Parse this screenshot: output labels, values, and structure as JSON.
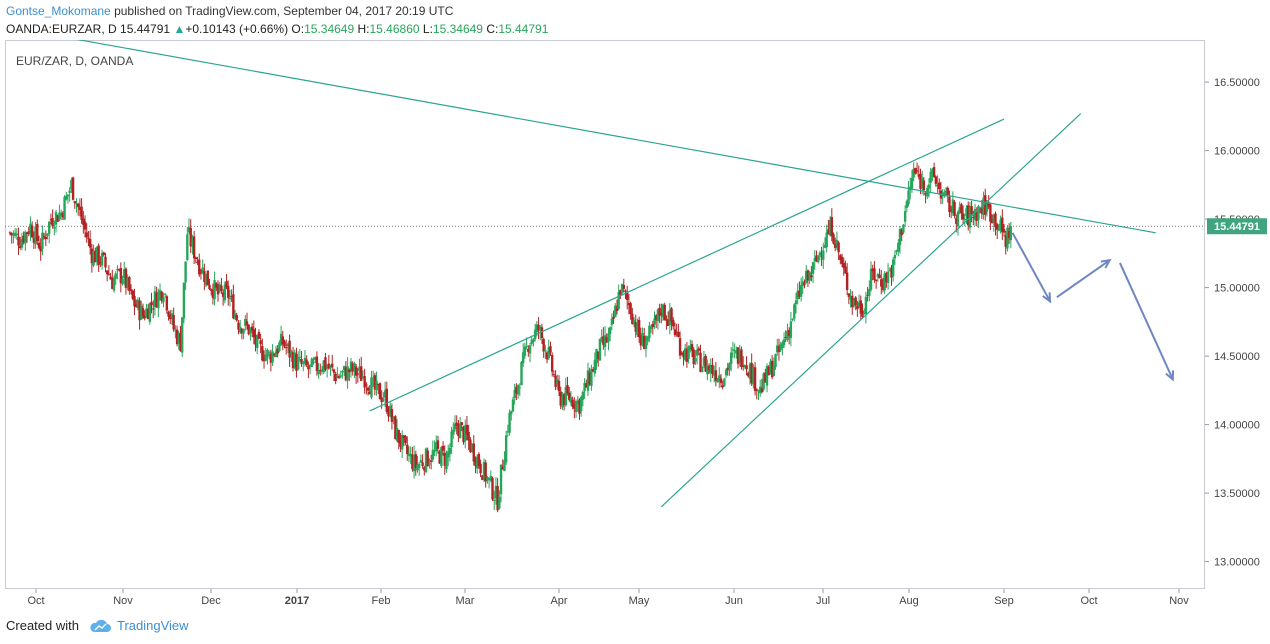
{
  "header": {
    "author": "Gontse_Mokomane",
    "published_text": "published on TradingView.com, September 04, 2017 20:19 UTC",
    "symbol_full": "OANDA:EURZAR, D",
    "last_price": "15.44791",
    "change_arrow": "▲",
    "change_text": "+0.10143 (+0.66%)",
    "open_label": "O:",
    "open_value": "15.34649",
    "high_label": "H:",
    "high_value": "15.46860",
    "low_label": "L:",
    "low_value": "15.34649",
    "close_label": "C:",
    "close_value": "15.44791"
  },
  "chart_label": "EUR/ZAR, D, OANDA",
  "footer": {
    "created_with": "Created with",
    "brand": "TradingView",
    "logo_icon": "tradingview-cloud-icon"
  },
  "colors": {
    "up": "#26a65b",
    "down": "#b22222",
    "trendline": "#2aa58f",
    "arrow": "#6f86c3",
    "price_badge": "#40a47f"
  },
  "chart_data": {
    "type": "candlestick",
    "symbol": "EUR/ZAR",
    "interval": "D",
    "source": "OANDA",
    "ylim": [
      12.8,
      16.75
    ],
    "y_ticks": [
      "13.00000",
      "13.50000",
      "14.00000",
      "14.50000",
      "15.00000",
      "15.50000",
      "16.00000",
      "16.50000"
    ],
    "x_tick_labels": [
      "Oct",
      "Nov",
      "Dec",
      "2017",
      "Feb",
      "Mar",
      "Apr",
      "May",
      "Jun",
      "Jul",
      "Aug",
      "Sep",
      "Oct",
      "Nov"
    ],
    "last_price_label": "15.44791",
    "close_path": [
      [
        0,
        15.4
      ],
      [
        6,
        15.35
      ],
      [
        12,
        15.45
      ],
      [
        18,
        15.3
      ],
      [
        24,
        15.5
      ],
      [
        30,
        15.55
      ],
      [
        36,
        15.75
      ],
      [
        42,
        15.5
      ],
      [
        48,
        15.25
      ],
      [
        54,
        15.2
      ],
      [
        60,
        15.05
      ],
      [
        66,
        15.1
      ],
      [
        72,
        14.9
      ],
      [
        78,
        14.8
      ],
      [
        84,
        14.9
      ],
      [
        90,
        15.0
      ],
      [
        96,
        14.7
      ],
      [
        100,
        14.6
      ],
      [
        104,
        15.4
      ],
      [
        110,
        15.2
      ],
      [
        116,
        15.05
      ],
      [
        122,
        14.95
      ],
      [
        128,
        14.95
      ],
      [
        134,
        14.75
      ],
      [
        140,
        14.7
      ],
      [
        146,
        14.55
      ],
      [
        152,
        14.5
      ],
      [
        160,
        14.6
      ],
      [
        168,
        14.45
      ],
      [
        176,
        14.4
      ],
      [
        184,
        14.45
      ],
      [
        192,
        14.35
      ],
      [
        200,
        14.4
      ],
      [
        208,
        14.35
      ],
      [
        214,
        14.25
      ],
      [
        220,
        14.2
      ],
      [
        226,
        13.95
      ],
      [
        232,
        13.8
      ],
      [
        238,
        13.7
      ],
      [
        244,
        13.75
      ],
      [
        250,
        13.8
      ],
      [
        256,
        13.75
      ],
      [
        262,
        14.0
      ],
      [
        268,
        13.9
      ],
      [
        274,
        13.75
      ],
      [
        280,
        13.6
      ],
      [
        286,
        13.45
      ],
      [
        292,
        14.0
      ],
      [
        298,
        14.3
      ],
      [
        304,
        14.6
      ],
      [
        310,
        14.7
      ],
      [
        316,
        14.5
      ],
      [
        322,
        14.2
      ],
      [
        328,
        14.2
      ],
      [
        334,
        14.15
      ],
      [
        340,
        14.35
      ],
      [
        346,
        14.55
      ],
      [
        352,
        14.65
      ],
      [
        358,
        15.0
      ],
      [
        364,
        14.85
      ],
      [
        370,
        14.6
      ],
      [
        376,
        14.65
      ],
      [
        382,
        14.85
      ],
      [
        388,
        14.75
      ],
      [
        394,
        14.55
      ],
      [
        400,
        14.5
      ],
      [
        406,
        14.45
      ],
      [
        412,
        14.4
      ],
      [
        418,
        14.35
      ],
      [
        424,
        14.5
      ],
      [
        430,
        14.5
      ],
      [
        436,
        14.35
      ],
      [
        440,
        14.25
      ],
      [
        446,
        14.4
      ],
      [
        452,
        14.55
      ],
      [
        458,
        14.75
      ],
      [
        464,
        15.0
      ],
      [
        470,
        15.1
      ],
      [
        476,
        15.3
      ],
      [
        482,
        15.45
      ],
      [
        488,
        15.15
      ],
      [
        494,
        14.9
      ],
      [
        500,
        14.85
      ],
      [
        506,
        15.1
      ],
      [
        512,
        15.05
      ],
      [
        518,
        15.15
      ],
      [
        524,
        15.5
      ],
      [
        530,
        15.85
      ],
      [
        536,
        15.75
      ],
      [
        542,
        15.8
      ],
      [
        548,
        15.65
      ],
      [
        554,
        15.55
      ],
      [
        560,
        15.5
      ],
      [
        566,
        15.55
      ],
      [
        572,
        15.6
      ],
      [
        578,
        15.5
      ],
      [
        584,
        15.35
      ],
      [
        587,
        15.45
      ]
    ],
    "trendlines": [
      {
        "x0": -90,
        "y0": 17.1,
        "x1": 672,
        "y1": 15.4
      },
      {
        "x0": 211,
        "y0": 14.1,
        "x1": 583,
        "y1": 16.23
      },
      {
        "x0": 382,
        "y0": 13.4,
        "x1": 628,
        "y1": 16.27
      }
    ],
    "projection_arrows": [
      {
        "x0": 588,
        "y0": 15.4,
        "x1": 610,
        "y1": 14.9
      },
      {
        "x0": 614,
        "y0": 14.93,
        "x1": 645,
        "y1": 15.2
      },
      {
        "x0": 651,
        "y0": 15.18,
        "x1": 682,
        "y1": 14.33
      }
    ]
  }
}
